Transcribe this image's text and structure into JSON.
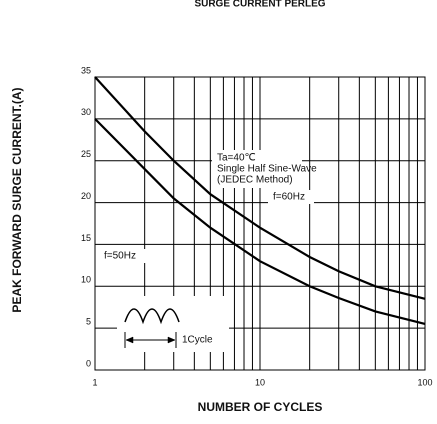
{
  "chart_data": {
    "type": "line",
    "title": "SURGE CURRENT PERLEG",
    "xlabel": "NUMBER OF CYCLES",
    "ylabel": "PEAK FORWARD SURGE CURRENT.(A)",
    "log_x": true,
    "grid": true,
    "x": [
      1,
      2,
      3,
      5,
      10,
      20,
      30,
      50,
      100
    ],
    "series": [
      {
        "name": "f=50Hz",
        "color": "#000000",
        "values": [
          35,
          28.5,
          25,
          21,
          17,
          13.5,
          11.8,
          10,
          8.5
        ]
      },
      {
        "name": "f=60Hz",
        "color": "#000000",
        "values": [
          30,
          24,
          20.5,
          17,
          13,
          10,
          8.6,
          7,
          5.5
        ]
      }
    ],
    "xlim": [
      1,
      100
    ],
    "xticks": [
      1,
      10,
      100
    ],
    "xminor_ticks": [
      2,
      3,
      4,
      5,
      6,
      7,
      8,
      9,
      20,
      30,
      40,
      50,
      60,
      70,
      80,
      90
    ],
    "ylim": [
      0,
      35
    ],
    "yticks": [
      0,
      5,
      10,
      15,
      20,
      25,
      30,
      35
    ],
    "annotations": [
      "Ta=40℃",
      "Single Half Sine-Wave",
      "(JEDEC Method)",
      "1Cycle"
    ]
  }
}
